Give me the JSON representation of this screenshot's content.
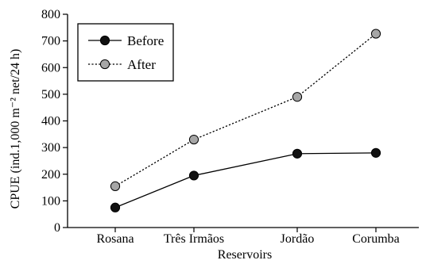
{
  "chart_data": {
    "type": "line",
    "title": "",
    "xlabel": "Reservoirs",
    "ylabel": "CPUE (ind.1,000 m⁻² net/24 h)",
    "categories": [
      "Rosana",
      "Três Irmãos",
      "Jordão",
      "Corumba"
    ],
    "ylim": [
      0,
      800
    ],
    "yticks": [
      0,
      100,
      200,
      300,
      400,
      500,
      600,
      700,
      800
    ],
    "grid": false,
    "legend_position": "top-left",
    "series": [
      {
        "name": "Before",
        "values": [
          75,
          195,
          277,
          280
        ],
        "line_style": "solid",
        "marker_color": "#111111",
        "line_color": "#000000"
      },
      {
        "name": "After",
        "values": [
          155,
          330,
          490,
          727
        ],
        "line_style": "dotted",
        "marker_color": "#a6a6a6",
        "line_color": "#000000"
      }
    ]
  }
}
